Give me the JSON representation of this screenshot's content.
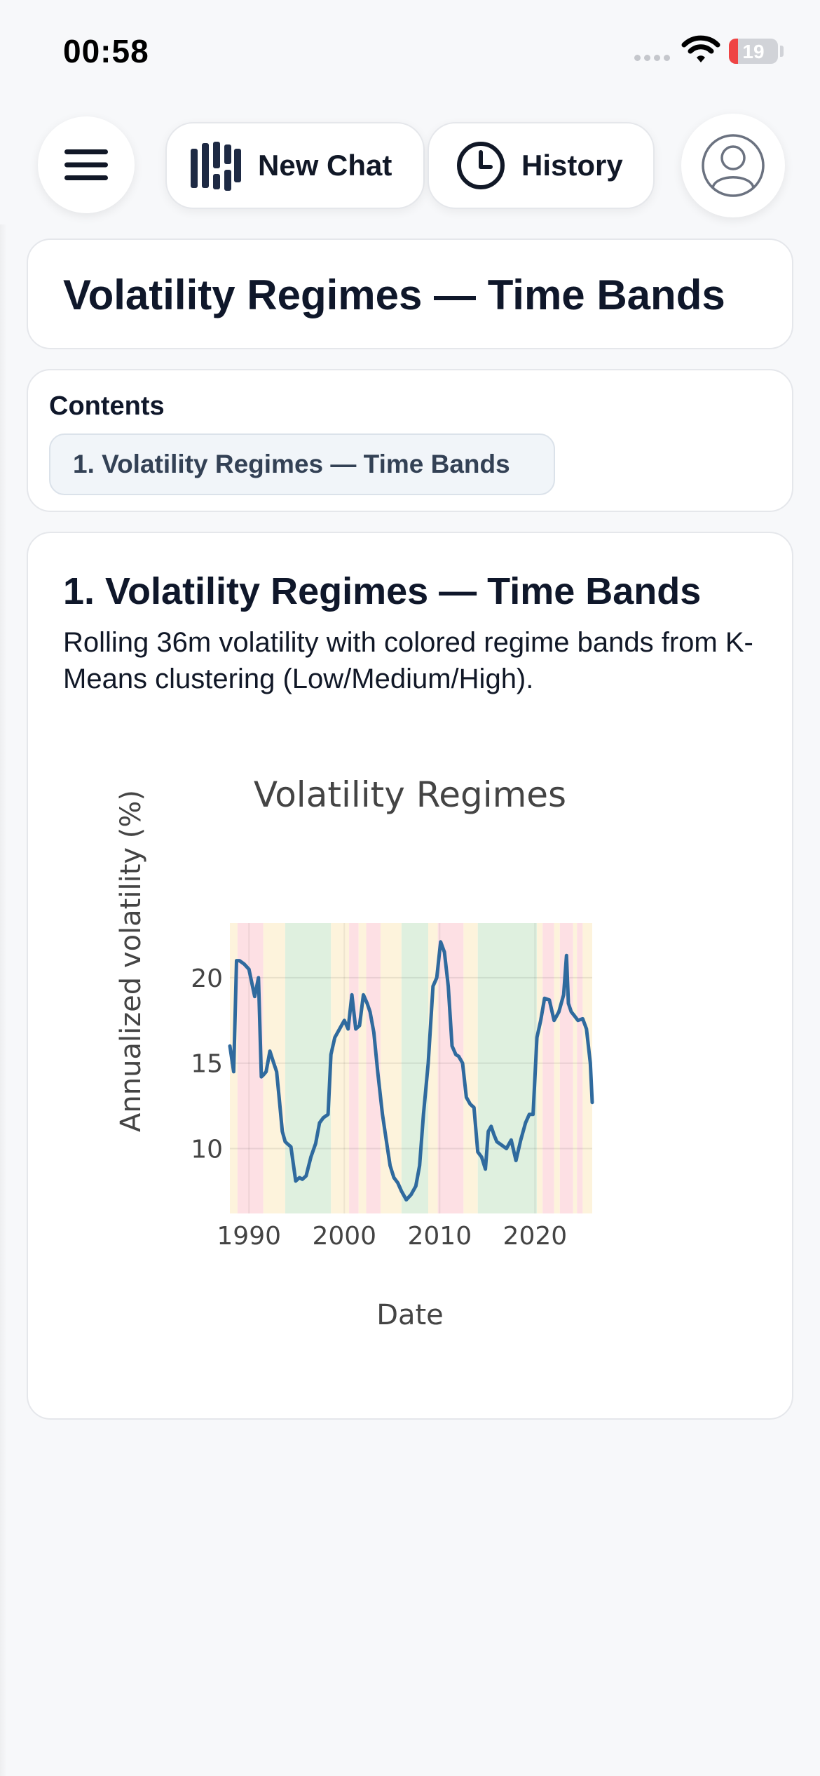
{
  "status_bar": {
    "time": "00:58",
    "battery": "19",
    "battery_level": 0.19
  },
  "toolbar": {
    "menu_icon": "hamburger-menu-icon",
    "new_chat_label": "New Chat",
    "new_chat_icon": "app-logo-icon",
    "history_label": "History",
    "history_icon": "clock-icon",
    "profile_icon": "user-avatar-icon"
  },
  "page_title": "Volatility Regimes — Time Bands",
  "contents": {
    "label": "Contents",
    "items": [
      {
        "label": "1. Volatility Regimes — Time Bands"
      }
    ]
  },
  "section": {
    "title": "1. Volatility Regimes — Time Bands",
    "description": "Rolling 36m volatility with colored regime bands from K-Means clustering (Low/Medium/High)."
  },
  "chart_data": {
    "type": "line",
    "title": "Volatility Regimes",
    "xlabel": "Date",
    "ylabel": "Annualized volatility (%)",
    "xlim": [
      1988.0,
      2026.0
    ],
    "ylim": [
      6.2,
      23.2
    ],
    "x_ticks": [
      "1990",
      "2000",
      "2010",
      "2020"
    ],
    "y_ticks": [
      "10",
      "15",
      "20"
    ],
    "grid": true,
    "regime_colors": {
      "Low": "#dff0df",
      "Medium": "#fdf3dc",
      "High": "#fde0e4"
    },
    "regime_bands": [
      {
        "start": 1988.0,
        "end": 1988.8,
        "regime": "Medium"
      },
      {
        "start": 1988.8,
        "end": 1991.5,
        "regime": "High"
      },
      {
        "start": 1991.5,
        "end": 1992.3,
        "regime": "Medium"
      },
      {
        "start": 1992.3,
        "end": 1993.8,
        "regime": "Medium"
      },
      {
        "start": 1993.8,
        "end": 1998.6,
        "regime": "Low"
      },
      {
        "start": 1998.6,
        "end": 2000.5,
        "regime": "Medium"
      },
      {
        "start": 2000.5,
        "end": 2001.5,
        "regime": "High"
      },
      {
        "start": 2001.5,
        "end": 2002.3,
        "regime": "Medium"
      },
      {
        "start": 2002.3,
        "end": 2003.8,
        "regime": "High"
      },
      {
        "start": 2003.8,
        "end": 2006.0,
        "regime": "Medium"
      },
      {
        "start": 2006.0,
        "end": 2008.8,
        "regime": "Low"
      },
      {
        "start": 2008.8,
        "end": 2009.8,
        "regime": "Medium"
      },
      {
        "start": 2009.8,
        "end": 2012.5,
        "regime": "High"
      },
      {
        "start": 2012.5,
        "end": 2014.0,
        "regime": "Medium"
      },
      {
        "start": 2014.0,
        "end": 2020.2,
        "regime": "Low"
      },
      {
        "start": 2020.2,
        "end": 2020.8,
        "regime": "Medium"
      },
      {
        "start": 2020.8,
        "end": 2022.0,
        "regime": "High"
      },
      {
        "start": 2022.0,
        "end": 2022.6,
        "regime": "Medium"
      },
      {
        "start": 2022.6,
        "end": 2024.0,
        "regime": "High"
      },
      {
        "start": 2024.0,
        "end": 2024.4,
        "regime": "Medium"
      },
      {
        "start": 2024.4,
        "end": 2025.0,
        "regime": "High"
      },
      {
        "start": 2025.0,
        "end": 2026.0,
        "regime": "Medium"
      }
    ],
    "series": [
      {
        "line_color": "#2f6a9e",
        "x": [
          1988.0,
          1988.4,
          1988.7,
          1989.0,
          1989.5,
          1990.0,
          1990.6,
          1991.0,
          1991.3,
          1991.5,
          1991.8,
          1992.2,
          1992.6,
          1992.9,
          1993.2,
          1993.5,
          1993.8,
          1994.0,
          1994.4,
          1994.9,
          1995.3,
          1995.6,
          1996.0,
          1996.5,
          1997.0,
          1997.4,
          1997.8,
          1998.3,
          1998.6,
          1999.0,
          1999.5,
          2000.0,
          2000.4,
          2000.8,
          2001.2,
          2001.6,
          2002.0,
          2002.4,
          2002.7,
          2003.1,
          2003.5,
          2004.0,
          2004.4,
          2004.8,
          2005.2,
          2005.6,
          2006.0,
          2006.5,
          2007.0,
          2007.5,
          2007.9,
          2008.3,
          2008.8,
          2009.3,
          2009.7,
          2010.1,
          2010.5,
          2010.9,
          2011.3,
          2011.7,
          2012.0,
          2012.4,
          2012.8,
          2013.2,
          2013.6,
          2014.0,
          2014.4,
          2014.8,
          2015.1,
          2015.4,
          2015.7,
          2016.0,
          2016.5,
          2017.0,
          2017.5,
          2018.0,
          2018.5,
          2019.0,
          2019.4,
          2019.8,
          2020.2,
          2020.6,
          2021.0,
          2021.5,
          2022.0,
          2022.5,
          2023.0,
          2023.3,
          2023.5,
          2023.8,
          2024.1,
          2024.5,
          2025.0,
          2025.4,
          2025.8,
          2026.0
        ],
        "y": [
          16.0,
          14.5,
          21.0,
          21.0,
          20.8,
          20.5,
          18.9,
          20.0,
          14.2,
          14.3,
          14.5,
          15.7,
          15.0,
          14.5,
          12.8,
          11.0,
          10.4,
          10.3,
          10.1,
          8.1,
          8.3,
          8.2,
          8.4,
          9.5,
          10.3,
          11.5,
          11.8,
          12.0,
          15.5,
          16.5,
          17.0,
          17.5,
          17.0,
          19.0,
          17.0,
          17.2,
          19.0,
          18.5,
          18.0,
          16.8,
          14.5,
          12.0,
          10.5,
          9.0,
          8.3,
          8.0,
          7.5,
          7.0,
          7.3,
          7.8,
          9.0,
          12.0,
          15.0,
          19.5,
          20.0,
          22.1,
          21.5,
          19.5,
          16.0,
          15.5,
          15.4,
          15.0,
          13.0,
          12.6,
          12.4,
          9.8,
          9.5,
          8.8,
          11.0,
          11.3,
          10.8,
          10.4,
          10.2,
          10.0,
          10.5,
          9.3,
          10.5,
          11.5,
          12.0,
          12.0,
          16.5,
          17.5,
          18.8,
          18.7,
          17.5,
          18.0,
          19.0,
          21.3,
          18.5,
          18.0,
          17.8,
          17.5,
          17.6,
          17.0,
          15.0,
          12.7
        ]
      }
    ]
  }
}
